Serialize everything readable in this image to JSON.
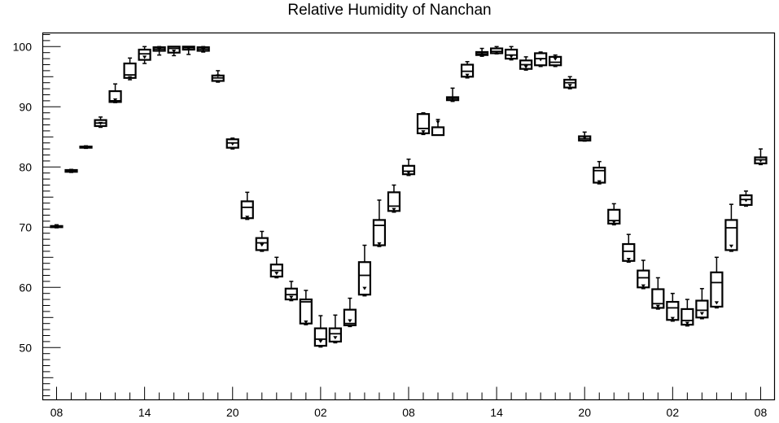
{
  "chart_data": {
    "type": "box",
    "title": "Relative Humidity of Nanchan",
    "xlabel": "",
    "ylabel": "",
    "ylim": [
      41,
      102
    ],
    "yticks": [
      50,
      60,
      70,
      80,
      90,
      100
    ],
    "x_tick_labels": [
      "08",
      "14",
      "20",
      "02",
      "08",
      "14",
      "20",
      "02",
      "08"
    ],
    "x_tick_hours": [
      0,
      6,
      12,
      18,
      24,
      30,
      36,
      42,
      48
    ],
    "grid": false,
    "colors": {
      "box": "#000000",
      "background": "#ffffff"
    },
    "series": [
      {
        "boxes": [
          {
            "hour": 0,
            "q1": 70.0,
            "median": 70.1,
            "q3": 70.2,
            "min": 69.9,
            "max": 70.4,
            "mean": 70.1
          },
          {
            "hour": 1,
            "q1": 79.2,
            "median": 79.3,
            "q3": 79.5,
            "min": 79.1,
            "max": 79.6,
            "mean": 79.3
          },
          {
            "hour": 2,
            "q1": 83.2,
            "median": 83.3,
            "q3": 83.4,
            "min": 83.1,
            "max": 83.5,
            "mean": 83.3
          },
          {
            "hour": 3,
            "q1": 86.8,
            "median": 87.3,
            "q3": 87.8,
            "min": 86.6,
            "max": 88.3,
            "mean": 87.2
          },
          {
            "hour": 4,
            "q1": 90.8,
            "median": 91.0,
            "q3": 92.6,
            "min": 90.7,
            "max": 93.8,
            "mean": 91.1
          },
          {
            "hour": 5,
            "q1": 94.8,
            "median": 95.3,
            "q3": 97.2,
            "min": 94.5,
            "max": 98.1,
            "mean": 94.8
          },
          {
            "hour": 6,
            "q1": 97.8,
            "median": 98.8,
            "q3": 99.5,
            "min": 97.2,
            "max": 100.0,
            "mean": 98.2
          },
          {
            "hour": 7,
            "q1": 99.3,
            "median": 99.6,
            "q3": 99.9,
            "min": 98.6,
            "max": 100.0,
            "mean": 99.5
          },
          {
            "hour": 8,
            "q1": 99.0,
            "median": 99.7,
            "q3": 100.0,
            "min": 98.5,
            "max": 100.0,
            "mean": 99.2
          },
          {
            "hour": 9,
            "q1": 99.5,
            "median": 99.8,
            "q3": 100.0,
            "min": 98.7,
            "max": 100.0,
            "mean": 99.6
          },
          {
            "hour": 10,
            "q1": 99.3,
            "median": 99.6,
            "q3": 99.9,
            "min": 99.1,
            "max": 100.0,
            "mean": 99.5
          },
          {
            "hour": 11,
            "q1": 94.3,
            "median": 94.8,
            "q3": 95.2,
            "min": 94.1,
            "max": 96.0,
            "mean": 95.1
          },
          {
            "hour": 12,
            "q1": 83.2,
            "median": 84.0,
            "q3": 84.6,
            "min": 83.0,
            "max": 84.8,
            "mean": 83.8
          },
          {
            "hour": 13,
            "q1": 71.5,
            "median": 73.3,
            "q3": 74.3,
            "min": 71.3,
            "max": 75.8,
            "mean": 71.6
          },
          {
            "hour": 14,
            "q1": 66.2,
            "median": 67.4,
            "q3": 68.2,
            "min": 66.0,
            "max": 69.3,
            "mean": 67.0
          },
          {
            "hour": 15,
            "q1": 61.8,
            "median": 62.8,
            "q3": 63.8,
            "min": 61.6,
            "max": 65.0,
            "mean": 62.3
          },
          {
            "hour": 16,
            "q1": 58.0,
            "median": 58.8,
            "q3": 59.8,
            "min": 57.8,
            "max": 61.0,
            "mean": 58.3
          },
          {
            "hour": 17,
            "q1": 54.0,
            "median": 57.6,
            "q3": 58.0,
            "min": 53.8,
            "max": 59.5,
            "mean": 54.2
          },
          {
            "hour": 18,
            "q1": 50.3,
            "median": 51.4,
            "q3": 53.2,
            "min": 50.1,
            "max": 55.3,
            "mean": 51.0
          },
          {
            "hour": 19,
            "q1": 51.0,
            "median": 52.3,
            "q3": 53.2,
            "min": 50.8,
            "max": 55.4,
            "mean": 51.6
          },
          {
            "hour": 20,
            "q1": 53.7,
            "median": 54.0,
            "q3": 56.3,
            "min": 53.5,
            "max": 58.2,
            "mean": 54.4
          },
          {
            "hour": 21,
            "q1": 58.8,
            "median": 62.0,
            "q3": 64.2,
            "min": 58.6,
            "max": 67.0,
            "mean": 59.8
          },
          {
            "hour": 22,
            "q1": 67.0,
            "median": 70.3,
            "q3": 71.2,
            "min": 66.8,
            "max": 74.5,
            "mean": 67.2
          },
          {
            "hour": 23,
            "q1": 72.7,
            "median": 73.5,
            "q3": 75.8,
            "min": 72.5,
            "max": 77.0,
            "mean": 72.9
          },
          {
            "hour": 24,
            "q1": 78.8,
            "median": 79.3,
            "q3": 80.2,
            "min": 78.6,
            "max": 81.3,
            "mean": 79.0
          },
          {
            "hour": 25,
            "q1": 85.6,
            "median": 86.4,
            "q3": 88.8,
            "min": 85.4,
            "max": 89.0,
            "mean": 85.8
          },
          {
            "hour": 26,
            "q1": 85.3,
            "median": 86.6,
            "q3": 86.6,
            "min": 85.3,
            "max": 87.9,
            "mean": 87.4
          },
          {
            "hour": 27,
            "q1": 91.1,
            "median": 91.4,
            "q3": 91.6,
            "min": 90.9,
            "max": 93.1,
            "mean": 91.3
          },
          {
            "hour": 28,
            "q1": 95.0,
            "median": 95.9,
            "q3": 97.0,
            "min": 94.8,
            "max": 97.5,
            "mean": 95.2
          },
          {
            "hour": 29,
            "q1": 98.6,
            "median": 98.8,
            "q3": 99.1,
            "min": 98.4,
            "max": 99.7,
            "mean": 98.9
          },
          {
            "hour": 30,
            "q1": 98.9,
            "median": 99.2,
            "q3": 99.7,
            "min": 98.8,
            "max": 100.0,
            "mean": 99.0
          },
          {
            "hour": 31,
            "q1": 98.0,
            "median": 98.6,
            "q3": 99.5,
            "min": 97.8,
            "max": 100.0,
            "mean": 98.3
          },
          {
            "hour": 32,
            "q1": 96.3,
            "median": 97.0,
            "q3": 97.7,
            "min": 96.1,
            "max": 98.3,
            "mean": 96.6
          },
          {
            "hour": 33,
            "q1": 96.9,
            "median": 98.0,
            "q3": 98.9,
            "min": 96.7,
            "max": 99.1,
            "mean": 97.8
          },
          {
            "hour": 34,
            "q1": 96.9,
            "median": 97.4,
            "q3": 98.3,
            "min": 96.7,
            "max": 98.6,
            "mean": 97.9
          },
          {
            "hour": 35,
            "q1": 93.2,
            "median": 94.0,
            "q3": 94.5,
            "min": 93.0,
            "max": 95.0,
            "mean": 93.5
          },
          {
            "hour": 36,
            "q1": 84.4,
            "median": 84.7,
            "q3": 85.1,
            "min": 84.3,
            "max": 85.8,
            "mean": 84.8
          },
          {
            "hour": 37,
            "q1": 77.4,
            "median": 79.4,
            "q3": 79.9,
            "min": 77.2,
            "max": 80.9,
            "mean": 77.5
          },
          {
            "hour": 38,
            "q1": 70.6,
            "median": 71.1,
            "q3": 72.9,
            "min": 70.4,
            "max": 73.9,
            "mean": 70.8
          },
          {
            "hour": 39,
            "q1": 64.4,
            "median": 66.0,
            "q3": 67.2,
            "min": 64.2,
            "max": 68.8,
            "mean": 64.6
          },
          {
            "hour": 40,
            "q1": 60.0,
            "median": 61.6,
            "q3": 62.8,
            "min": 59.8,
            "max": 64.5,
            "mean": 60.2
          },
          {
            "hour": 41,
            "q1": 56.6,
            "median": 57.3,
            "q3": 59.7,
            "min": 56.4,
            "max": 61.6,
            "mean": 56.8
          },
          {
            "hour": 42,
            "q1": 54.6,
            "median": 56.6,
            "q3": 57.6,
            "min": 54.4,
            "max": 59.0,
            "mean": 54.8
          },
          {
            "hour": 43,
            "q1": 53.8,
            "median": 54.5,
            "q3": 56.4,
            "min": 53.6,
            "max": 58.0,
            "mean": 54.0
          },
          {
            "hour": 44,
            "q1": 55.0,
            "median": 56.2,
            "q3": 57.8,
            "min": 54.8,
            "max": 59.8,
            "mean": 55.6
          },
          {
            "hour": 45,
            "q1": 56.8,
            "median": 60.8,
            "q3": 62.5,
            "min": 56.6,
            "max": 65.0,
            "mean": 57.4
          },
          {
            "hour": 46,
            "q1": 66.2,
            "median": 69.9,
            "q3": 71.2,
            "min": 66.0,
            "max": 73.8,
            "mean": 66.8
          },
          {
            "hour": 47,
            "q1": 73.7,
            "median": 74.6,
            "q3": 75.3,
            "min": 73.5,
            "max": 76.0,
            "mean": 74.4
          },
          {
            "hour": 48,
            "q1": 80.6,
            "median": 81.2,
            "q3": 81.6,
            "min": 80.4,
            "max": 83.0,
            "mean": 81.0
          }
        ]
      }
    ]
  }
}
